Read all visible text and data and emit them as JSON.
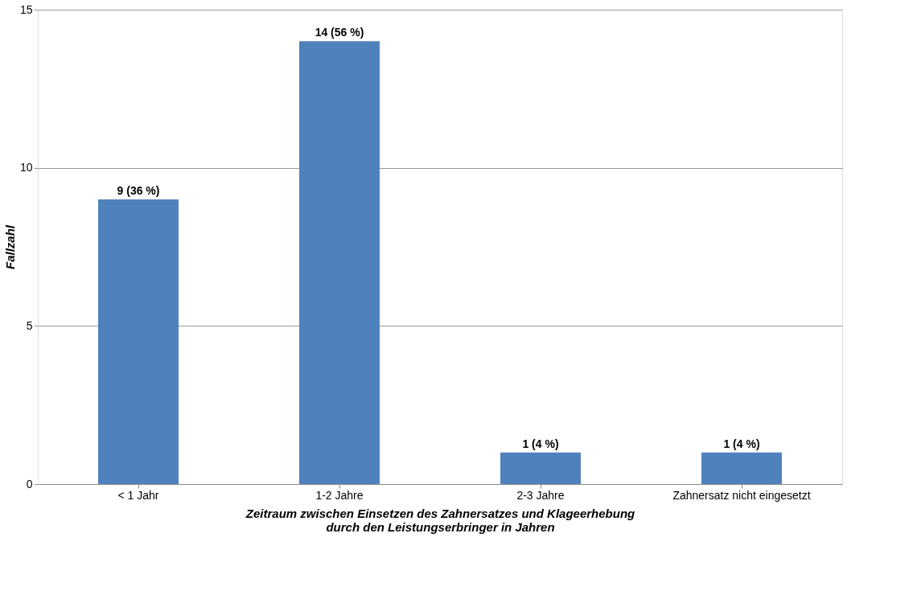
{
  "chart_data": {
    "type": "bar",
    "categories": [
      "< 1 Jahr",
      "1-2 Jahre",
      "2-3 Jahre",
      "Zahnersatz nicht eingesetzt"
    ],
    "values": [
      9,
      14,
      1,
      1
    ],
    "value_labels": [
      "9 (36 %)",
      "14 (56 %)",
      "1 (4 %)",
      "1 (4 %)"
    ],
    "color": "#4f81bd",
    "xlabel": "Zeitraum zwischen Einsetzen des Zahnersatzes und Klageerhebung\ndurch den Leistungserbringer in Jahren",
    "ylabel": "Fallzahl",
    "ylim": [
      0,
      15
    ],
    "yticks": [
      0,
      5,
      10,
      15
    ],
    "grid": "y"
  }
}
